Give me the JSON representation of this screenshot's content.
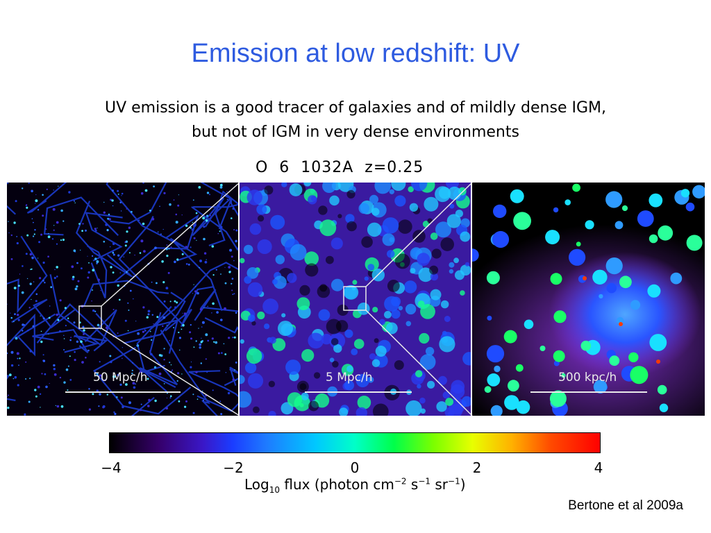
{
  "slide": {
    "title": "Emission at low redshift: UV",
    "subtitle_line1": "UV emission is a good tracer of galaxies and of mildly dense IGM,",
    "subtitle_line2": "but not of IGM in very dense environments",
    "citation": "Bertone et al 2009a"
  },
  "figure": {
    "label": "O  6  1032A  z=0.25",
    "panels": [
      {
        "scale_label": "50 Mpc/h"
      },
      {
        "scale_label": "5 Mpc/h"
      },
      {
        "scale_label": "500 kpc/h"
      }
    ],
    "colorbar": {
      "ticks": [
        "−4",
        "−2",
        "0",
        "2",
        "4"
      ],
      "title_prefix": "Log",
      "title_sub": "10",
      "title_rest": " flux (photon cm",
      "exp1": "−2",
      "s_text": " s",
      "exp2": "−1",
      "sr_text": " sr",
      "exp3": "−1",
      "close": ")",
      "range": [
        -4,
        4
      ]
    }
  },
  "colors": {
    "title": "#2e5be0",
    "panel_background": "#000000",
    "zoom_lines": "#e9e9e9"
  }
}
